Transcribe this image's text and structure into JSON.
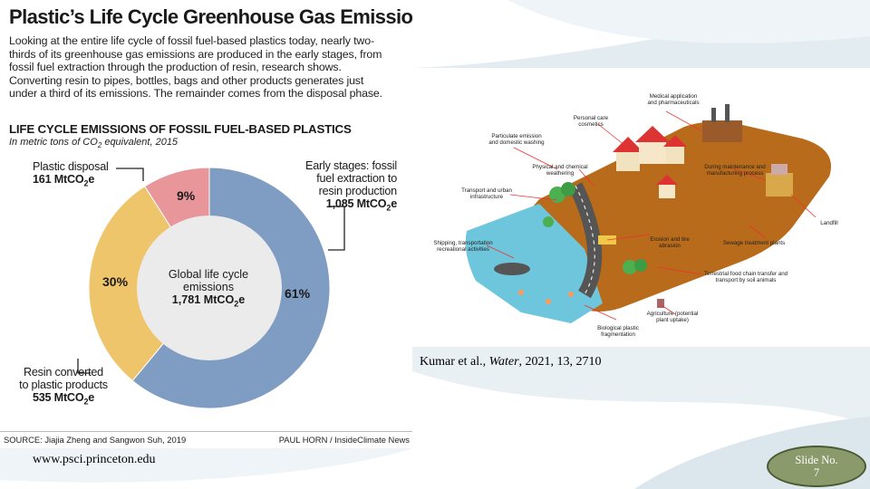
{
  "infographic": {
    "title": "Plastic’s Life Cycle Greenhouse Gas Emissions",
    "intro": "Looking at the entire life cycle of fossil fuel-based plastics today, nearly two-thirds of its greenhouse gas emissions are produced in the early stages, from fossil fuel extraction through the production of resin, research shows. Converting resin to pipes, bottles, bags and other products generates just under a third of its emissions. The remainder comes from the disposal phase.",
    "chart_heading": "LIFE CYCLE EMISSIONS OF FOSSIL FUEL-BASED PLASTICS",
    "units_prefix": "In metric tons of CO",
    "units_sub": "2",
    "units_suffix": " equivalent, 2015",
    "source": "SOURCE: Jiajia Zheng and Sangwon Suh, 2019",
    "credit": "PAUL HORN / InsideClimate News"
  },
  "chart_data": {
    "type": "pie",
    "donut": true,
    "center_label": [
      "Global life cycle",
      "emissions"
    ],
    "center_value": "1,781 MtCO",
    "center_value_sub": "2",
    "center_value_suffix": "e",
    "slices": [
      {
        "label_lines": [
          "Early stages: fossil",
          "fuel extraction to",
          "resin production"
        ],
        "value_text": "1,085 MtCO",
        "percent_label": "61%",
        "percent": 61,
        "color": "#7f9cc2"
      },
      {
        "label_lines": [
          "Resin converted",
          "to plastic products"
        ],
        "value_text": "535 MtCO",
        "percent_label": "30%",
        "percent": 30,
        "color": "#efc56b"
      },
      {
        "label_lines": [
          "Plastic disposal"
        ],
        "value_text": "161 MtCO",
        "percent_label": "9%",
        "percent": 9,
        "color": "#e9969a"
      }
    ],
    "unit_sub": "2",
    "unit_suffix": "e"
  },
  "illustration": {
    "labels": [
      "Medical application and pharmaceuticals",
      "Personal care cosmetics",
      "Particulate emission and domestic washing",
      "Physical and chemical weathering",
      "During maintenance and manufacturing process",
      "Transport and urban infrastructure",
      "Landfill",
      "Sewage treatment plants",
      "Shipping, transportation recreational activities",
      "Erosion and tire abrasion",
      "Terrestrial food chain transfer and transport by soil animals",
      "Agriculture (potential plant uptake)",
      "Biological plastic fragmentation"
    ]
  },
  "footer": {
    "url": "www.psci.princeton.edu",
    "citation_authors": "Kumar et al., ",
    "citation_journal": "Water",
    "citation_rest": ", 2021, 13, 2710",
    "slide_label": "Slide No.",
    "slide_number": "7"
  },
  "colors": {
    "accent_badge": "#8a9a6b",
    "deco": "#dce8ec"
  }
}
